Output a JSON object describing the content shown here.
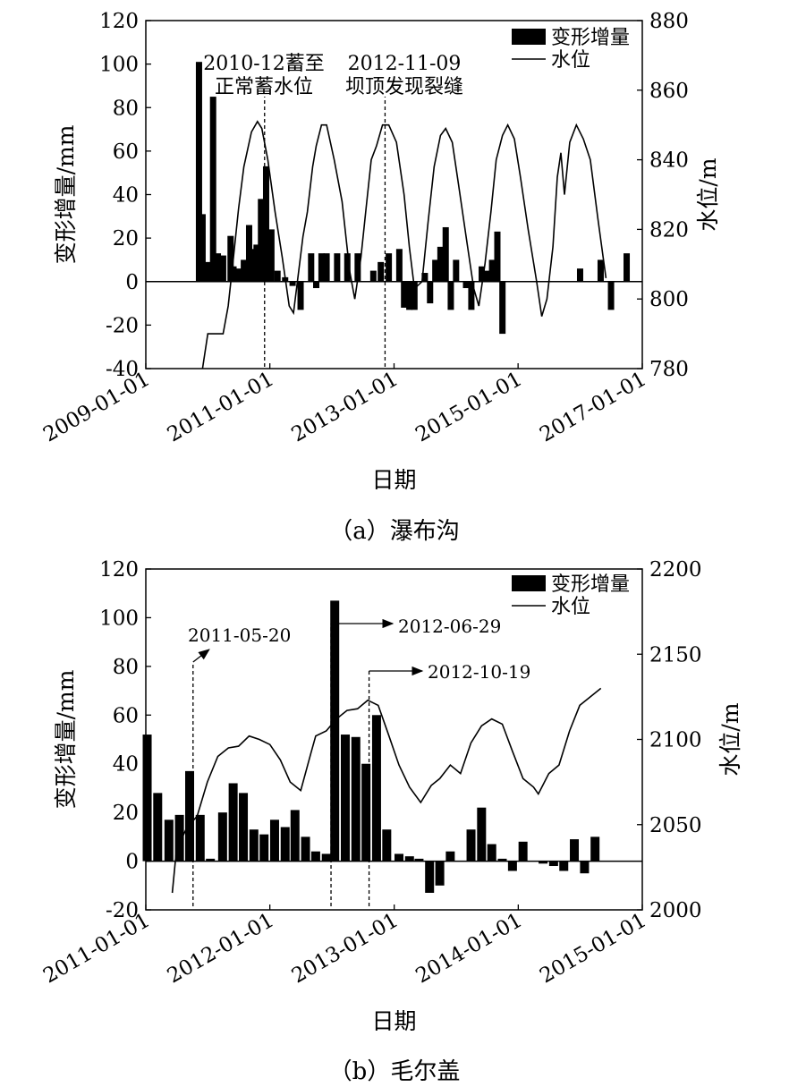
{
  "chart_data": [
    {
      "type": "bar+line",
      "caption": "（a）瀑布沟",
      "xlabel": "日期",
      "ylabel_left": "变形增量/mm",
      "ylabel_right": "水位/m",
      "xlim": [
        "2009-01-01",
        "2017-01-01"
      ],
      "ylim_left": [
        -40,
        120
      ],
      "ylim_right": [
        780,
        880
      ],
      "x_ticks": [
        "2009-01-01",
        "2011-01-01",
        "2013-01-01",
        "2015-01-01",
        "2017-01-01"
      ],
      "y_ticks_left": [
        "-40",
        "-20",
        "0",
        "20",
        "40",
        "60",
        "80",
        "100",
        "120"
      ],
      "y_ticks_right": [
        "780",
        "800",
        "820",
        "840",
        "860",
        "880"
      ],
      "legend": [
        "变形增量",
        "水位"
      ],
      "legend_position": "top-right",
      "annotations": [
        {
          "date": "2010-12-01",
          "label_lines": [
            "2010-12蓄至",
            "正常蓄水位"
          ]
        },
        {
          "date": "2012-11-09",
          "label_lines": [
            "2012-11-09",
            "坝顶发现裂缝"
          ]
        }
      ],
      "bars": [
        {
          "date": "2009-11-10",
          "value": 101
        },
        {
          "date": "2009-12-01",
          "value": 31
        },
        {
          "date": "2010-01-01",
          "value": 9
        },
        {
          "date": "2010-02-01",
          "value": 85
        },
        {
          "date": "2010-03-01",
          "value": 13
        },
        {
          "date": "2010-04-01",
          "value": 12
        },
        {
          "date": "2010-05-15",
          "value": 21
        },
        {
          "date": "2010-06-01",
          "value": 7
        },
        {
          "date": "2010-07-01",
          "value": 6
        },
        {
          "date": "2010-08-01",
          "value": 10
        },
        {
          "date": "2010-09-01",
          "value": 26
        },
        {
          "date": "2010-09-25",
          "value": 15
        },
        {
          "date": "2010-10-15",
          "value": 17
        },
        {
          "date": "2010-11-10",
          "value": 38
        },
        {
          "date": "2010-12-10",
          "value": 53
        },
        {
          "date": "2011-01-10",
          "value": 24
        },
        {
          "date": "2011-02-15",
          "value": 5
        },
        {
          "date": "2011-04-01",
          "value": 2
        },
        {
          "date": "2011-05-15",
          "value": -2
        },
        {
          "date": "2011-07-01",
          "value": -13
        },
        {
          "date": "2011-09-01",
          "value": 13
        },
        {
          "date": "2011-10-01",
          "value": -3
        },
        {
          "date": "2011-11-01",
          "value": 13
        },
        {
          "date": "2011-12-01",
          "value": 13
        },
        {
          "date": "2012-02-01",
          "value": 13
        },
        {
          "date": "2012-04-01",
          "value": 13
        },
        {
          "date": "2012-06-01",
          "value": 13
        },
        {
          "date": "2012-09-01",
          "value": 5
        },
        {
          "date": "2012-10-15",
          "value": 9
        },
        {
          "date": "2012-12-01",
          "value": 13
        },
        {
          "date": "2013-02-01",
          "value": 15
        },
        {
          "date": "2013-03-01",
          "value": -12
        },
        {
          "date": "2013-04-01",
          "value": -13
        },
        {
          "date": "2013-05-01",
          "value": -13
        },
        {
          "date": "2013-07-01",
          "value": 4
        },
        {
          "date": "2013-08-01",
          "value": -10
        },
        {
          "date": "2013-09-01",
          "value": 10
        },
        {
          "date": "2013-10-01",
          "value": 16
        },
        {
          "date": "2013-11-01",
          "value": 25
        },
        {
          "date": "2013-12-01",
          "value": -13
        },
        {
          "date": "2014-01-01",
          "value": 10
        },
        {
          "date": "2014-03-01",
          "value": -3
        },
        {
          "date": "2014-04-01",
          "value": -13
        },
        {
          "date": "2014-06-01",
          "value": 7
        },
        {
          "date": "2014-07-01",
          "value": 5
        },
        {
          "date": "2014-08-01",
          "value": 10
        },
        {
          "date": "2014-09-01",
          "value": 23
        },
        {
          "date": "2014-10-01",
          "value": -24
        },
        {
          "date": "2016-01-01",
          "value": 6
        },
        {
          "date": "2016-05-01",
          "value": 10
        },
        {
          "date": "2016-07-01",
          "value": -13
        },
        {
          "date": "2016-10-01",
          "value": 13
        }
      ],
      "line": [
        [
          "2009-12-01",
          780
        ],
        [
          "2010-01-01",
          790
        ],
        [
          "2010-04-01",
          790
        ],
        [
          "2010-05-01",
          798
        ],
        [
          "2010-06-01",
          812
        ],
        [
          "2010-07-01",
          826
        ],
        [
          "2010-08-01",
          838
        ],
        [
          "2010-09-15",
          848
        ],
        [
          "2010-10-20",
          851
        ],
        [
          "2010-11-15",
          849
        ],
        [
          "2010-12-20",
          840
        ],
        [
          "2011-02-01",
          825
        ],
        [
          "2011-03-15",
          812
        ],
        [
          "2011-04-25",
          798
        ],
        [
          "2011-05-20",
          796
        ],
        [
          "2011-06-20",
          808
        ],
        [
          "2011-07-15",
          818
        ],
        [
          "2011-08-10",
          825
        ],
        [
          "2011-09-10",
          838
        ],
        [
          "2011-10-01",
          844
        ],
        [
          "2011-11-01",
          850
        ],
        [
          "2011-12-01",
          850
        ],
        [
          "2012-01-15",
          840
        ],
        [
          "2012-03-01",
          828
        ],
        [
          "2012-04-15",
          808
        ],
        [
          "2012-05-15",
          800
        ],
        [
          "2012-06-20",
          812
        ],
        [
          "2012-07-20",
          826
        ],
        [
          "2012-08-20",
          840
        ],
        [
          "2012-09-20",
          844
        ],
        [
          "2012-10-25",
          850
        ],
        [
          "2012-12-01",
          850
        ],
        [
          "2013-01-15",
          845
        ],
        [
          "2013-03-01",
          830
        ],
        [
          "2013-04-01",
          815
        ],
        [
          "2013-05-01",
          803
        ],
        [
          "2013-06-15",
          805
        ],
        [
          "2013-07-20",
          822
        ],
        [
          "2013-08-25",
          838
        ],
        [
          "2013-10-01",
          847
        ],
        [
          "2013-11-01",
          849
        ],
        [
          "2013-12-10",
          845
        ],
        [
          "2014-01-15",
          833
        ],
        [
          "2014-03-01",
          818
        ],
        [
          "2014-04-15",
          803
        ],
        [
          "2014-05-15",
          798
        ],
        [
          "2014-06-20",
          810
        ],
        [
          "2014-07-25",
          825
        ],
        [
          "2014-08-25",
          840
        ],
        [
          "2014-10-01",
          847
        ],
        [
          "2014-11-01",
          850
        ],
        [
          "2014-12-10",
          846
        ],
        [
          "2015-01-15",
          835
        ],
        [
          "2015-03-01",
          820
        ],
        [
          "2015-04-20",
          805
        ],
        [
          "2015-05-20",
          795
        ],
        [
          "2015-06-20",
          800
        ],
        [
          "2015-07-25",
          815
        ],
        [
          "2015-08-20",
          835
        ],
        [
          "2015-09-10",
          842
        ],
        [
          "2015-10-01",
          830
        ],
        [
          "2015-11-01",
          845
        ],
        [
          "2015-12-10",
          850
        ],
        [
          "2016-01-20",
          846
        ],
        [
          "2016-03-01",
          840
        ],
        [
          "2016-04-15",
          823
        ],
        [
          "2016-06-01",
          806
        ]
      ]
    },
    {
      "type": "bar+line",
      "caption": "（b）毛尔盖",
      "xlabel": "日期",
      "ylabel_left": "变形增量/mm",
      "ylabel_right": "水位/m",
      "xlim": [
        "2011-01-01",
        "2015-01-01"
      ],
      "ylim_left": [
        -20,
        120
      ],
      "ylim_right": [
        2000,
        2200
      ],
      "x_ticks": [
        "2011-01-01",
        "2012-01-01",
        "2013-01-01",
        "2014-01-01",
        "2015-01-01"
      ],
      "y_ticks_left": [
        "-20",
        "0",
        "20",
        "40",
        "60",
        "80",
        "100",
        "120"
      ],
      "y_ticks_right": [
        "2000",
        "2050",
        "2100",
        "2150",
        "2200"
      ],
      "legend": [
        "变形增量",
        "水位"
      ],
      "legend_position": "top-right",
      "annotations": [
        {
          "date": "2011-05-20",
          "label": "2011-05-20"
        },
        {
          "date": "2012-06-29",
          "label": "2012-06-29"
        },
        {
          "date": "2012-10-19",
          "label": "2012-10-19"
        }
      ],
      "bars": [
        {
          "date": "2011-01-05",
          "value": 52
        },
        {
          "date": "2011-02-05",
          "value": 28
        },
        {
          "date": "2011-03-10",
          "value": 17
        },
        {
          "date": "2011-04-10",
          "value": 19
        },
        {
          "date": "2011-05-10",
          "value": 37
        },
        {
          "date": "2011-06-10",
          "value": 19
        },
        {
          "date": "2011-07-10",
          "value": 1
        },
        {
          "date": "2011-08-15",
          "value": 20
        },
        {
          "date": "2011-09-15",
          "value": 32
        },
        {
          "date": "2011-10-15",
          "value": 28
        },
        {
          "date": "2011-11-15",
          "value": 13
        },
        {
          "date": "2011-12-15",
          "value": 11
        },
        {
          "date": "2012-01-15",
          "value": 17
        },
        {
          "date": "2012-02-15",
          "value": 14
        },
        {
          "date": "2012-03-15",
          "value": 21
        },
        {
          "date": "2012-04-15",
          "value": 10
        },
        {
          "date": "2012-05-15",
          "value": 4
        },
        {
          "date": "2012-06-15",
          "value": 3
        },
        {
          "date": "2012-07-10",
          "value": 107
        },
        {
          "date": "2012-08-10",
          "value": 52
        },
        {
          "date": "2012-09-10",
          "value": 51
        },
        {
          "date": "2012-10-10",
          "value": 40
        },
        {
          "date": "2012-11-10",
          "value": 60
        },
        {
          "date": "2012-12-10",
          "value": 13
        },
        {
          "date": "2013-01-15",
          "value": 3
        },
        {
          "date": "2013-02-15",
          "value": 2
        },
        {
          "date": "2013-03-15",
          "value": 1
        },
        {
          "date": "2013-04-15",
          "value": -13
        },
        {
          "date": "2013-05-15",
          "value": -10
        },
        {
          "date": "2013-06-15",
          "value": 4
        },
        {
          "date": "2013-08-15",
          "value": 13
        },
        {
          "date": "2013-09-15",
          "value": 22
        },
        {
          "date": "2013-10-15",
          "value": 7
        },
        {
          "date": "2013-11-15",
          "value": 1
        },
        {
          "date": "2013-12-15",
          "value": -4
        },
        {
          "date": "2014-01-15",
          "value": 8
        },
        {
          "date": "2014-03-15",
          "value": -1
        },
        {
          "date": "2014-04-15",
          "value": -2
        },
        {
          "date": "2014-05-15",
          "value": -4
        },
        {
          "date": "2014-06-15",
          "value": 9
        },
        {
          "date": "2014-07-15",
          "value": -5
        },
        {
          "date": "2014-08-15",
          "value": 10
        }
      ],
      "line": [
        [
          "2011-03-20",
          2010
        ],
        [
          "2011-04-01",
          2035
        ],
        [
          "2011-05-01",
          2048
        ],
        [
          "2011-06-01",
          2055
        ],
        [
          "2011-07-01",
          2075
        ],
        [
          "2011-08-01",
          2090
        ],
        [
          "2011-09-01",
          2095
        ],
        [
          "2011-10-01",
          2096
        ],
        [
          "2011-11-01",
          2102
        ],
        [
          "2011-12-01",
          2100
        ],
        [
          "2012-01-01",
          2097
        ],
        [
          "2012-02-01",
          2088
        ],
        [
          "2012-03-01",
          2075
        ],
        [
          "2012-04-01",
          2070
        ],
        [
          "2012-05-01",
          2092
        ],
        [
          "2012-05-15",
          2102
        ],
        [
          "2012-06-15",
          2105
        ],
        [
          "2012-07-15",
          2112
        ],
        [
          "2012-08-15",
          2117
        ],
        [
          "2012-09-15",
          2118
        ],
        [
          "2012-10-15",
          2123
        ],
        [
          "2012-11-15",
          2120
        ],
        [
          "2012-12-15",
          2103
        ],
        [
          "2013-01-15",
          2085
        ],
        [
          "2013-02-15",
          2072
        ],
        [
          "2013-03-20",
          2063
        ],
        [
          "2013-04-20",
          2073
        ],
        [
          "2013-05-15",
          2077
        ],
        [
          "2013-06-15",
          2085
        ],
        [
          "2013-07-15",
          2080
        ],
        [
          "2013-08-15",
          2098
        ],
        [
          "2013-09-15",
          2108
        ],
        [
          "2013-10-15",
          2112
        ],
        [
          "2013-11-15",
          2109
        ],
        [
          "2013-12-15",
          2093
        ],
        [
          "2014-01-15",
          2077
        ],
        [
          "2014-02-15",
          2072
        ],
        [
          "2014-03-01",
          2068
        ],
        [
          "2014-04-01",
          2080
        ],
        [
          "2014-05-01",
          2085
        ],
        [
          "2014-06-01",
          2105
        ],
        [
          "2014-07-01",
          2120
        ],
        [
          "2014-08-01",
          2125
        ],
        [
          "2014-09-01",
          2130
        ]
      ]
    }
  ]
}
